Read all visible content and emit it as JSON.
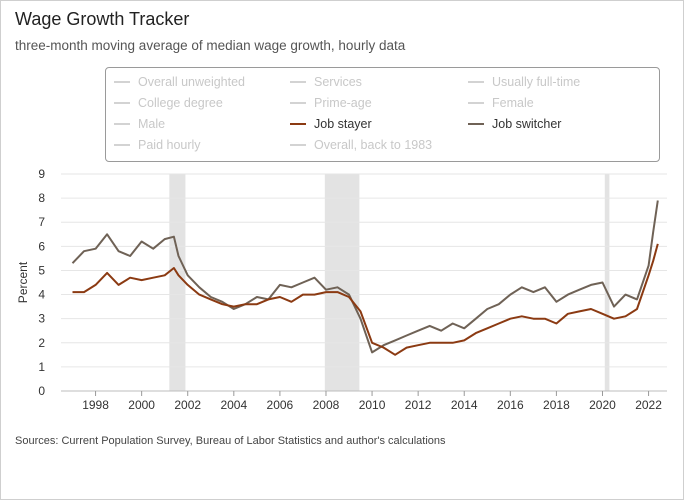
{
  "title": "Wage Growth Tracker",
  "subtitle": "three-month moving average of median wage growth, hourly data",
  "source": "Sources: Current Population Survey, Bureau of Labor Statistics and author's calculations",
  "legend": {
    "items": [
      {
        "label": "Overall unweighted",
        "active": false,
        "color": "#d3d3d3"
      },
      {
        "label": "Services",
        "active": false,
        "color": "#d3d3d3"
      },
      {
        "label": "Usually full-time",
        "active": false,
        "color": "#d3d3d3"
      },
      {
        "label": "College degree",
        "active": false,
        "color": "#d3d3d3"
      },
      {
        "label": "Prime-age",
        "active": false,
        "color": "#d3d3d3"
      },
      {
        "label": "Female",
        "active": false,
        "color": "#d3d3d3"
      },
      {
        "label": "Male",
        "active": false,
        "color": "#d3d3d3"
      },
      {
        "label": "Job stayer",
        "active": true,
        "color": "#8b3a12"
      },
      {
        "label": "Job switcher",
        "active": true,
        "color": "#6f6256"
      },
      {
        "label": "Paid hourly",
        "active": false,
        "color": "#d3d3d3"
      },
      {
        "label": "Overall, back to 1983",
        "active": false,
        "color": "#d3d3d3"
      }
    ]
  },
  "chart_data": {
    "type": "line",
    "title": "Wage Growth Tracker",
    "ylabel": "Percent",
    "xlabel": "",
    "xlim": [
      1996.5,
      2022.8
    ],
    "ylim": [
      0,
      9
    ],
    "yticks": [
      0,
      1,
      2,
      3,
      4,
      5,
      6,
      7,
      8,
      9
    ],
    "xticks": [
      1998,
      2000,
      2002,
      2004,
      2006,
      2008,
      2010,
      2012,
      2014,
      2016,
      2018,
      2020,
      2022
    ],
    "grid": "horizontal",
    "recessions": [
      [
        2001.2,
        2001.9
      ],
      [
        2007.95,
        2009.45
      ],
      [
        2020.1,
        2020.3
      ]
    ],
    "series": [
      {
        "name": "Job switcher",
        "color": "#6f6256",
        "x": [
          1997.0,
          1997.5,
          1998.0,
          1998.5,
          1999.0,
          1999.5,
          2000.0,
          2000.5,
          2001.0,
          2001.4,
          2001.6,
          2002.0,
          2002.5,
          2003.0,
          2003.5,
          2004.0,
          2004.5,
          2005.0,
          2005.5,
          2006.0,
          2006.5,
          2007.0,
          2007.5,
          2008.0,
          2008.5,
          2009.0,
          2009.5,
          2010.0,
          2010.5,
          2011.0,
          2011.5,
          2012.0,
          2012.5,
          2013.0,
          2013.5,
          2014.0,
          2014.5,
          2015.0,
          2015.5,
          2016.0,
          2016.5,
          2017.0,
          2017.5,
          2018.0,
          2018.5,
          2019.0,
          2019.5,
          2020.0,
          2020.5,
          2021.0,
          2021.5,
          2022.0,
          2022.2,
          2022.4
        ],
        "values": [
          5.3,
          5.8,
          5.9,
          6.5,
          5.8,
          5.6,
          6.2,
          5.9,
          6.3,
          6.4,
          5.6,
          4.8,
          4.3,
          3.9,
          3.7,
          3.4,
          3.6,
          3.9,
          3.8,
          4.4,
          4.3,
          4.5,
          4.7,
          4.2,
          4.3,
          4.0,
          3.0,
          1.6,
          1.9,
          2.1,
          2.3,
          2.5,
          2.7,
          2.5,
          2.8,
          2.6,
          3.0,
          3.4,
          3.6,
          4.0,
          4.3,
          4.1,
          4.3,
          3.7,
          4.0,
          4.2,
          4.4,
          4.5,
          3.5,
          4.0,
          3.8,
          5.2,
          6.6,
          7.9
        ]
      },
      {
        "name": "Job stayer",
        "color": "#8b3a12",
        "x": [
          1997.0,
          1997.5,
          1998.0,
          1998.5,
          1999.0,
          1999.5,
          2000.0,
          2000.5,
          2001.0,
          2001.4,
          2001.6,
          2002.0,
          2002.5,
          2003.0,
          2003.5,
          2004.0,
          2004.5,
          2005.0,
          2005.5,
          2006.0,
          2006.5,
          2007.0,
          2007.5,
          2008.0,
          2008.5,
          2009.0,
          2009.5,
          2010.0,
          2010.5,
          2011.0,
          2011.5,
          2012.0,
          2012.5,
          2013.0,
          2013.5,
          2014.0,
          2014.5,
          2015.0,
          2015.5,
          2016.0,
          2016.5,
          2017.0,
          2017.5,
          2018.0,
          2018.5,
          2019.0,
          2019.5,
          2020.0,
          2020.5,
          2021.0,
          2021.5,
          2022.0,
          2022.2,
          2022.4
        ],
        "values": [
          4.1,
          4.1,
          4.4,
          4.9,
          4.4,
          4.7,
          4.6,
          4.7,
          4.8,
          5.1,
          4.8,
          4.4,
          4.0,
          3.8,
          3.6,
          3.5,
          3.6,
          3.6,
          3.8,
          3.9,
          3.7,
          4.0,
          4.0,
          4.1,
          4.1,
          3.9,
          3.3,
          2.0,
          1.8,
          1.5,
          1.8,
          1.9,
          2.0,
          2.0,
          2.0,
          2.1,
          2.4,
          2.6,
          2.8,
          3.0,
          3.1,
          3.0,
          3.0,
          2.8,
          3.2,
          3.3,
          3.4,
          3.2,
          3.0,
          3.1,
          3.4,
          4.8,
          5.4,
          6.1
        ]
      }
    ]
  }
}
